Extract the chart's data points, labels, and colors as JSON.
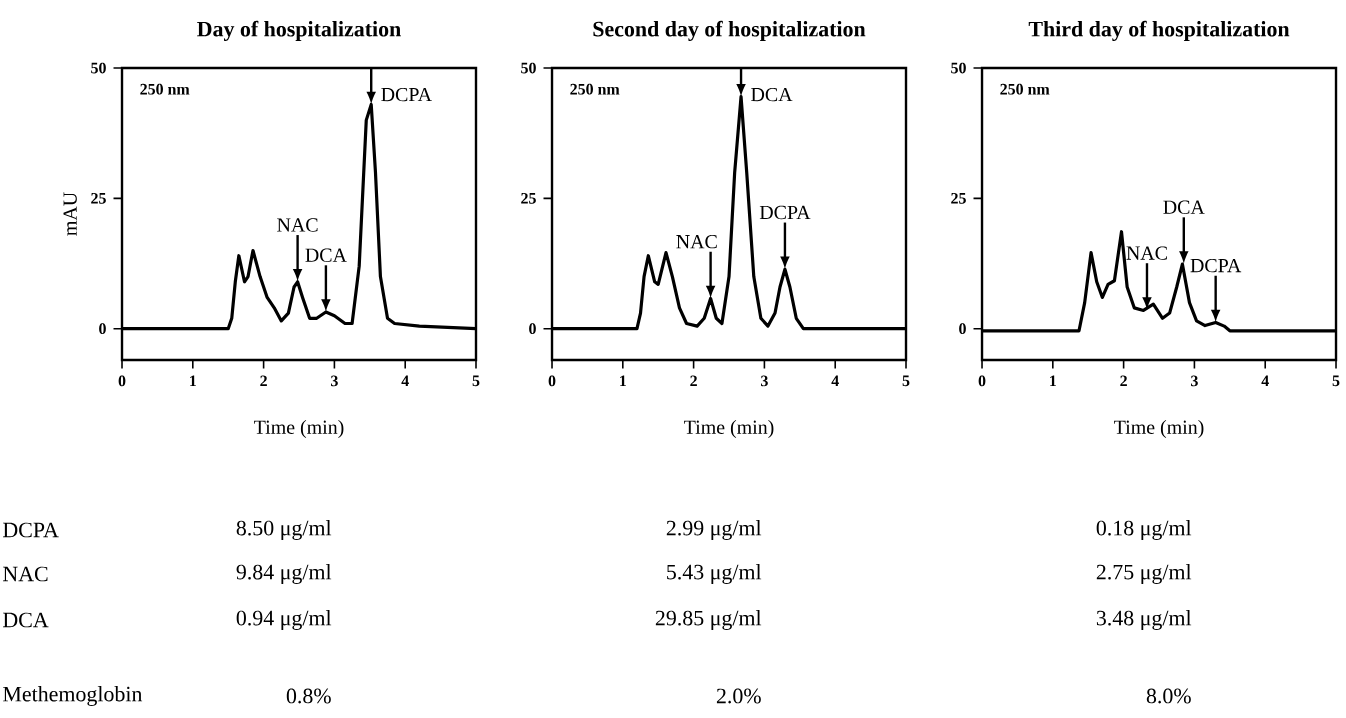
{
  "chart_data": [
    {
      "type": "line",
      "title": "Day of hospitalization",
      "xlabel": "Time (min)",
      "ylabel": "mAU",
      "color": "#000000",
      "xlim": [
        0,
        5
      ],
      "ylim": [
        -6,
        50
      ],
      "xticks": [
        0,
        1,
        2,
        3,
        4,
        5
      ],
      "yticks": [
        0,
        25,
        50
      ],
      "x": [
        0,
        1.5,
        1.55,
        1.6,
        1.65,
        1.73,
        1.78,
        1.85,
        1.95,
        2.05,
        2.15,
        2.25,
        2.35,
        2.43,
        2.48,
        2.55,
        2.65,
        2.75,
        2.88,
        3.0,
        3.15,
        3.25,
        3.35,
        3.45,
        3.52,
        3.58,
        3.65,
        3.75,
        3.85,
        4.2,
        5
      ],
      "values": [
        0,
        0,
        2,
        9,
        14,
        9,
        10,
        15,
        10,
        6,
        4,
        1.5,
        3,
        8,
        9,
        6,
        2,
        2,
        3.2,
        2.5,
        1,
        1,
        12,
        40,
        43,
        30,
        10,
        2,
        1,
        0.5,
        0
      ],
      "annotations": [
        "250 nm",
        "DCPA",
        "NAC",
        "DCA",
        "Methemoglobin",
        "8.50 μg/ml",
        "9.84 μg/ml",
        "0.94 μg/ml",
        "0.8%",
        {
          "text": "NAC",
          "x": 2.48,
          "y": 9
        },
        {
          "text": "DCA",
          "x": 2.88,
          "y": 3.2
        },
        {
          "text": "DCPA",
          "x": 3.52,
          "y": 43
        }
      ]
    },
    {
      "type": "line",
      "title": "Second day of hospitalization",
      "xlabel": "Time (min)",
      "color": "#000000",
      "xlim": [
        0,
        5
      ],
      "ylim": [
        -6,
        50
      ],
      "xticks": [
        0,
        1,
        2,
        3,
        4,
        5
      ],
      "yticks": [
        0,
        25,
        50
      ],
      "x": [
        0,
        1.2,
        1.25,
        1.3,
        1.36,
        1.45,
        1.5,
        1.61,
        1.7,
        1.8,
        1.9,
        2.05,
        2.15,
        2.24,
        2.32,
        2.4,
        2.5,
        2.58,
        2.67,
        2.75,
        2.85,
        2.95,
        3.05,
        3.15,
        3.22,
        3.29,
        3.36,
        3.45,
        3.55,
        5
      ],
      "values": [
        0,
        0,
        3,
        10,
        14,
        9,
        8.5,
        14.6,
        10,
        4,
        1,
        0.5,
        2,
        5.8,
        2,
        1,
        10,
        30,
        44.5,
        30,
        10,
        2,
        0.5,
        3,
        8,
        11.4,
        8,
        2,
        0,
        0
      ],
      "annotations": [
        "250 nm",
        "2.99 μg/ml",
        "5.43 μg/ml",
        "29.85 μg/ml",
        "2.0%",
        {
          "text": "NAC",
          "x": 2.24,
          "y": 5.8
        },
        {
          "text": "DCA",
          "x": 2.67,
          "y": 44.5
        },
        {
          "text": "DCPA",
          "x": 3.29,
          "y": 11.4
        }
      ]
    },
    {
      "type": "line",
      "title": "Third day of hospitalization",
      "xlabel": "Time (min)",
      "color": "#000000",
      "xlim": [
        0,
        5
      ],
      "ylim": [
        -6,
        50
      ],
      "xticks": [
        0,
        1,
        2,
        3,
        4,
        5
      ],
      "yticks": [
        0,
        25,
        50
      ],
      "x": [
        0,
        1.37,
        1.45,
        1.54,
        1.62,
        1.7,
        1.78,
        1.87,
        1.97,
        2.05,
        2.15,
        2.28,
        2.42,
        2.55,
        2.65,
        2.75,
        2.83,
        2.93,
        3.03,
        3.15,
        3.3,
        3.42,
        3.5,
        5
      ],
      "values": [
        -0.4,
        -0.4,
        5,
        14.6,
        9,
        6,
        8.5,
        9.2,
        18.6,
        8,
        4,
        3.5,
        4.7,
        2,
        3,
        8,
        12.4,
        5,
        1.5,
        0.6,
        1.2,
        0.5,
        -0.4,
        -0.4
      ],
      "annotations": [
        "250 nm",
        "0.18 μg/ml",
        "2.75 μg/ml",
        "3.48 μg/ml",
        "8.0%",
        {
          "text": "NAC",
          "x": 2.33,
          "y": 3.6
        },
        {
          "text": "DCA",
          "x": 2.85,
          "y": 12.4
        },
        {
          "text": "DCPA",
          "x": 3.3,
          "y": 1.2
        }
      ]
    }
  ]
}
